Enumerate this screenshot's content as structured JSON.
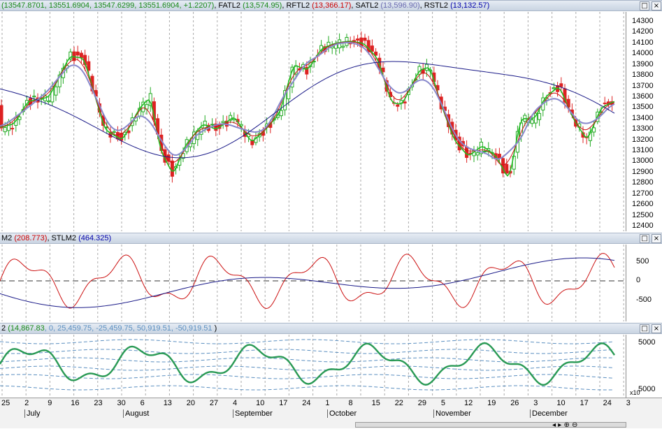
{
  "panes": {
    "price": {
      "legend": [
        {
          "text": "(13547.8701, 13551.6904, 13547.6299, 13551.6904, +1.2207)",
          "color": "#1a8a1a"
        },
        {
          "text": ", FATL2 ",
          "color": "#000000"
        },
        {
          "text": "(13,574.95)",
          "color": "#1a8a1a"
        },
        {
          "text": ", RFTL2 ",
          "color": "#000000"
        },
        {
          "text": "(13,366.17)",
          "color": "#cc0000"
        },
        {
          "text": ", SATL2 ",
          "color": "#000000"
        },
        {
          "text": "(13,596.90)",
          "color": "#6a6ab0"
        },
        {
          "text": ", RSTL2 ",
          "color": "#000000"
        },
        {
          "text": "(13,132.57)",
          "color": "#0000aa"
        }
      ],
      "y_labels": [
        "14300",
        "14200",
        "14100",
        "14000",
        "13900",
        "13800",
        "13700",
        "13600",
        "13500",
        "13400",
        "13300",
        "13200",
        "13100",
        "13000",
        "12900",
        "12800",
        "12700",
        "12600",
        "12500",
        "12400"
      ]
    },
    "osc1": {
      "legend": [
        {
          "text": "M2 ",
          "color": "#000000"
        },
        {
          "text": "(208.773)",
          "color": "#cc0000"
        },
        {
          "text": ", STLM2 ",
          "color": "#000000"
        },
        {
          "text": "(464.325)",
          "color": "#0000aa"
        }
      ],
      "y_labels": [
        "500",
        "0",
        "-500"
      ]
    },
    "osc2": {
      "legend": [
        {
          "text": "2 ",
          "color": "#000000"
        },
        {
          "text": "(14,867.83",
          "color": "#1a8a1a"
        },
        {
          "text": ", 0, 25,459.75, -25,459.75, 50,919.51, -50,919.51",
          "color": "#5b8fc0"
        },
        {
          "text": " )",
          "color": "#000000"
        }
      ],
      "y_labels": [
        "5000",
        "5000"
      ],
      "multiplier": "x10"
    }
  },
  "header_buttons": [
    "□",
    "×"
  ],
  "time_axis": {
    "days": [
      "25",
      "2",
      "9",
      "16",
      "23",
      "30",
      "6",
      "13",
      "20",
      "27",
      "4",
      "10",
      "17",
      "24",
      "1",
      "8",
      "15",
      "22",
      "29",
      "5",
      "12",
      "19",
      "26",
      "3",
      "10",
      "17",
      "24",
      "3"
    ],
    "months": [
      "July",
      "August",
      "September",
      "October",
      "November",
      "December"
    ]
  },
  "colors": {
    "bull": "#22aa22",
    "bear": "#dd2222",
    "fatl": "#22bb22",
    "rftl": "#cc1111",
    "satl": "#8888cc",
    "rstl": "#1a1a88",
    "grid": "#aaaaaa"
  }
}
